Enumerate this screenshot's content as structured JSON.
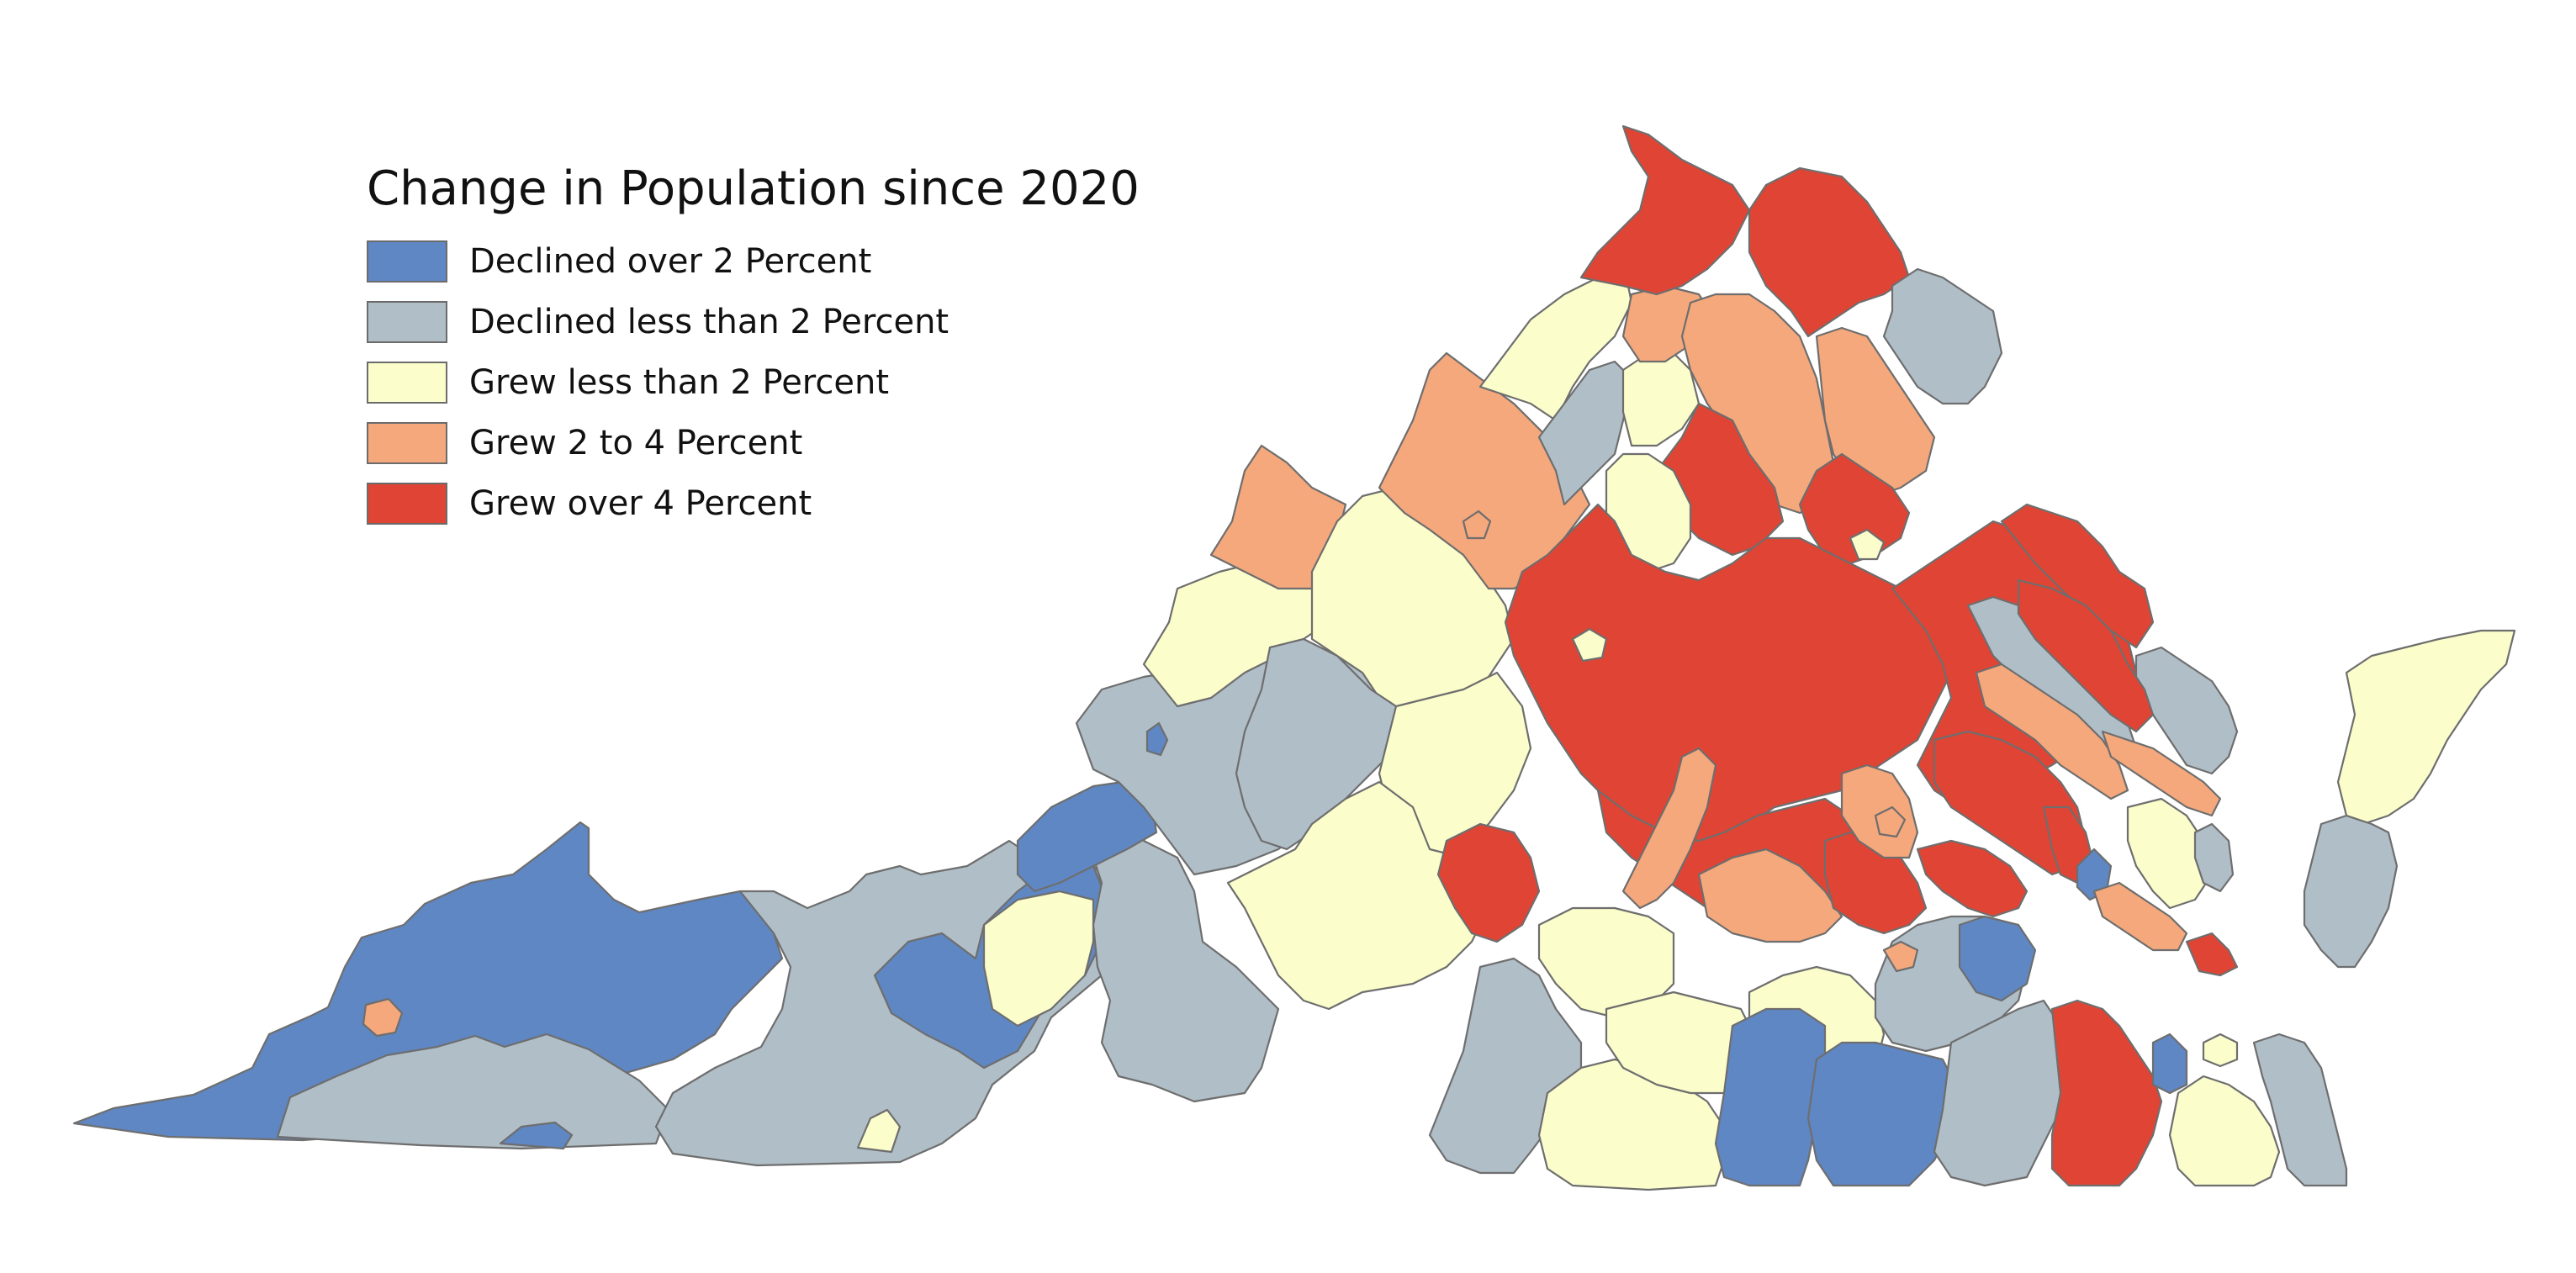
{
  "legend": {
    "title": "Change in Population since 2020",
    "items": [
      {
        "label": "Declined over 2 Percent",
        "color": "#5f87c4"
      },
      {
        "label": "Declined less than 2 Percent",
        "color": "#b0bec7"
      },
      {
        "label": "Grew less than 2 Percent",
        "color": "#fbfdcb"
      },
      {
        "label": "Grew 2 to 4 Percent",
        "color": "#f5a87c"
      },
      {
        "label": "Grew over 4 Percent",
        "color": "#e04434"
      }
    ]
  },
  "map": {
    "region": "Virginia",
    "unit": "county",
    "outline_color": "#6e6e6e",
    "category_regions": {
      "declined-over-2": [
        "far-southwest",
        "southwest",
        "southside-south-central",
        "south-central",
        "hampton-roads"
      ],
      "declined-less-2": [
        "southwest-border",
        "new-river",
        "roanoke-valley",
        "shenandoah-west",
        "central-west",
        "southside-east",
        "northern-virginia-inner",
        "northern-neck",
        "middle-peninsula",
        "eastern-shore-south"
      ],
      "grew-less-2": [
        "alleghany-highlands",
        "lynchburg-area",
        "shenandoah-valley",
        "southside-central",
        "eastern-shore-north",
        "virginia-beach-chesapeake-east"
      ],
      "grew-2-4": [
        "highland",
        "rockingham",
        "fauquier",
        "stafford",
        "goochland-area",
        "dinwiddie-area",
        "gloucester-area",
        "lee-pocket"
      ],
      "grew-over-4": [
        "loudoun",
        "frederick",
        "prince-william",
        "culpeper-orange",
        "central-piedmont",
        "richmond-metro",
        "williamsburg-area",
        "suffolk-isle-of-wight",
        "halifax-pocket"
      ]
    }
  }
}
